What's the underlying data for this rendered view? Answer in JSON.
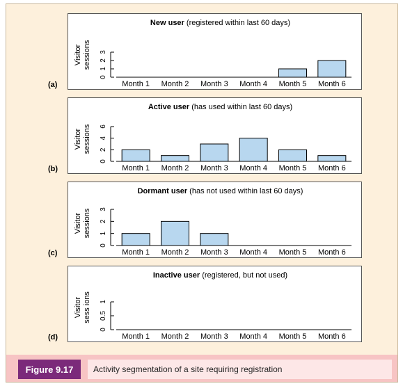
{
  "figure": {
    "label": "Figure 9.17",
    "caption": "Activity segmentation of a site requiring registration"
  },
  "colors": {
    "bar_fill": "#b8d7ef",
    "bar_stroke": "#000000",
    "background": "#fdf0dc",
    "label_bg": "#7b2a7a",
    "caption_bg": "#f7c4c4"
  },
  "chart_data": [
    {
      "type": "bar",
      "panel": "(a)",
      "title_bold": "New user",
      "title_rest": " (registered within last 60 days)",
      "ylabel_line1": "Visitor",
      "ylabel_line2": "sessions",
      "categories": [
        "Month 1",
        "Month 2",
        "Month 3",
        "Month 4",
        "Month 5",
        "Month 6"
      ],
      "values": [
        0,
        0,
        0,
        0,
        1,
        2
      ],
      "yticks": [
        "0",
        "1",
        "2",
        "3"
      ],
      "ylim": [
        0,
        3
      ]
    },
    {
      "type": "bar",
      "panel": "(b)",
      "title_bold": "Active user",
      "title_rest": " (has used within last 60 days)",
      "ylabel_line1": "Visitor",
      "ylabel_line2": "sessions",
      "categories": [
        "Month 1",
        "Month 2",
        "Month 3",
        "Month 4",
        "Month 5",
        "Month 6"
      ],
      "values": [
        2,
        1,
        3,
        4,
        2,
        1
      ],
      "yticks": [
        "0",
        "2",
        "4",
        "6"
      ],
      "ylim": [
        0,
        6
      ]
    },
    {
      "type": "bar",
      "panel": "(c)",
      "title_bold": "Dormant user",
      "title_rest": " (has not used within last 60 days)",
      "ylabel_line1": "Visitor",
      "ylabel_line2": "sessions",
      "categories": [
        "Month 1",
        "Month 2",
        "Month 3",
        "Month 4",
        "Month 5",
        "Month 6"
      ],
      "values": [
        1,
        2,
        1,
        0,
        0,
        0
      ],
      "yticks": [
        "0",
        "1",
        "2",
        "3"
      ],
      "ylim": [
        0,
        3
      ]
    },
    {
      "type": "bar",
      "panel": "(d)",
      "title_bold": "Inactive user",
      "title_rest": " (registered, but not used)",
      "ylabel_line1": "Visitor",
      "ylabel_line2": "sess ions",
      "categories": [
        "Month 1",
        "Month 2",
        "Month 3",
        "Month 4",
        "Month 5",
        "Month 6"
      ],
      "values": [
        0,
        0,
        0,
        0,
        0,
        0
      ],
      "yticks": [
        "0",
        "0.5",
        "1"
      ],
      "ylim": [
        0,
        1
      ]
    }
  ]
}
